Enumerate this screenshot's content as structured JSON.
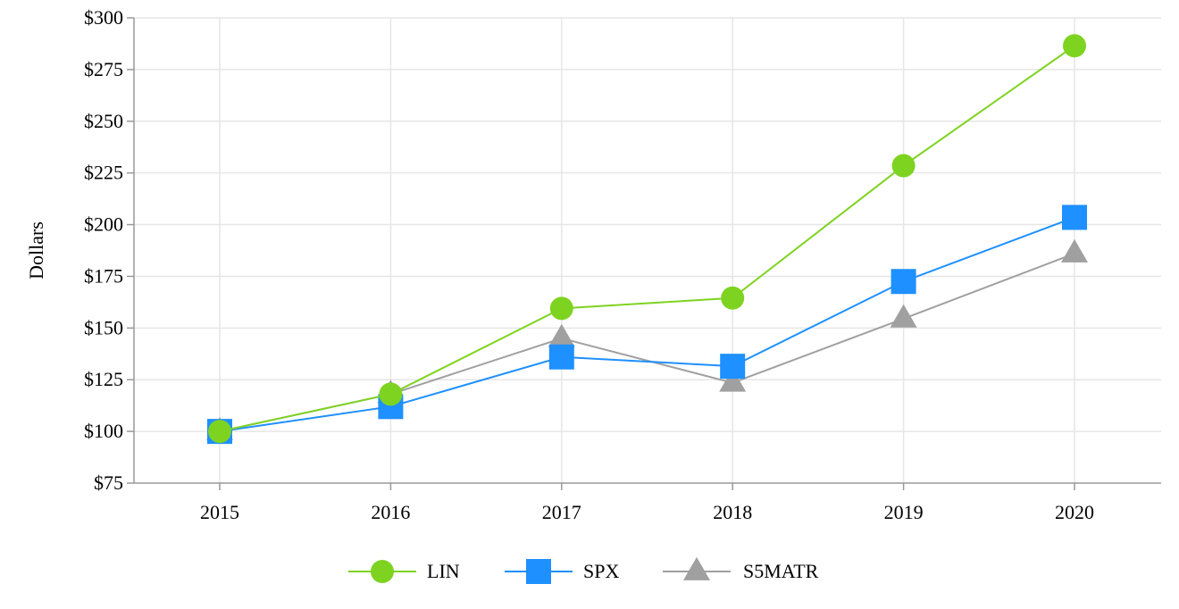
{
  "chart_data": {
    "type": "line",
    "title": "",
    "xlabel": "",
    "ylabel": "Dollars",
    "categories": [
      "2015",
      "2016",
      "2017",
      "2018",
      "2019",
      "2020"
    ],
    "ylim": [
      75,
      300
    ],
    "yticks": [
      75,
      100,
      125,
      150,
      175,
      200,
      225,
      250,
      275,
      300
    ],
    "ytick_labels": [
      "$75",
      "$100",
      "$125",
      "$150",
      "$175",
      "$200",
      "$225",
      "$250",
      "$275",
      "$300"
    ],
    "grid": true,
    "legend_position": "bottom-center",
    "series": [
      {
        "name": "LIN",
        "color": "#7ED321",
        "marker": "circle",
        "values": [
          100,
          118,
          159.5,
          164.5,
          228.5,
          286.5
        ]
      },
      {
        "name": "SPX",
        "color": "#1E90FF",
        "marker": "square",
        "values": [
          100,
          112,
          136,
          131.5,
          172.5,
          203.5
        ]
      },
      {
        "name": "S5MATR",
        "color": "#A0A0A0",
        "marker": "triangle",
        "values": [
          100,
          118,
          145,
          123.5,
          154.5,
          186
        ]
      }
    ]
  }
}
